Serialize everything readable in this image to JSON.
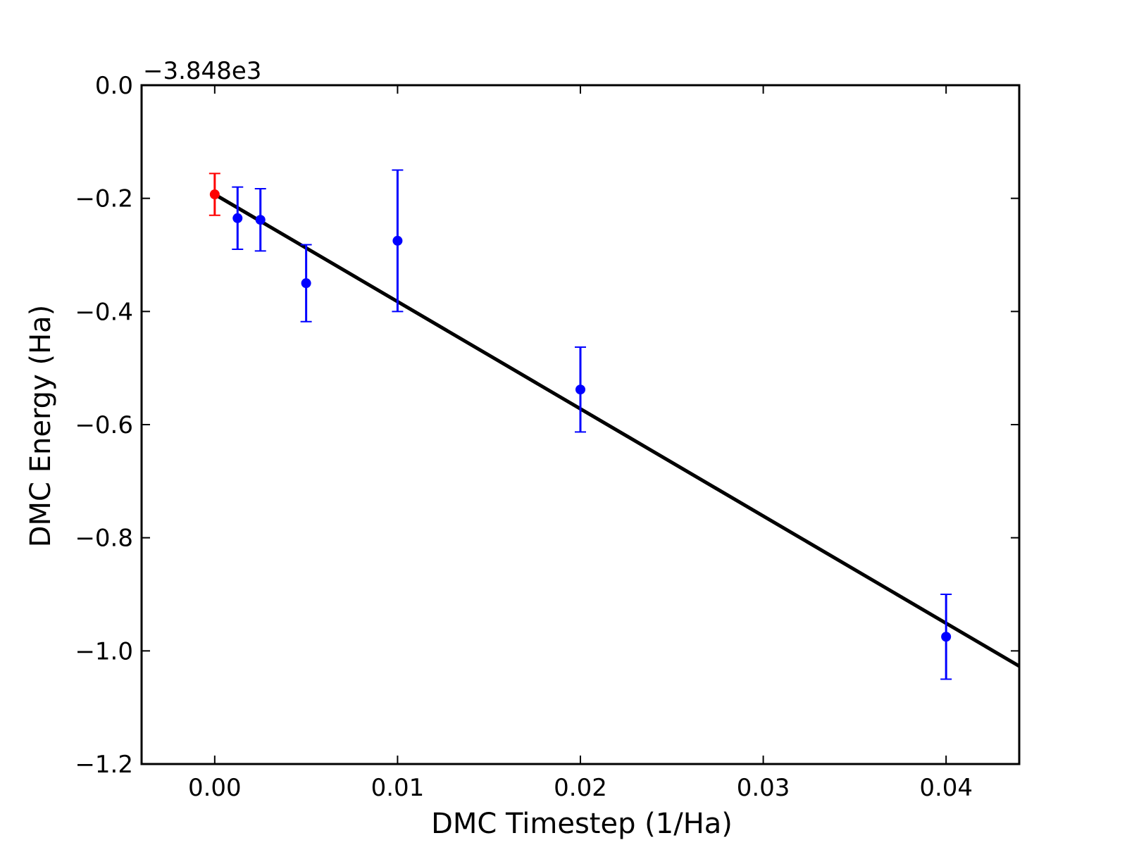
{
  "chart_data": {
    "type": "scatter",
    "xlabel": "DMC Timestep (1/Ha)",
    "ylabel": "DMC Energy (Ha)",
    "y_offset_label": "−3.848e3",
    "xlim": [
      -0.004,
      0.044
    ],
    "ylim": [
      -1.2,
      0.0
    ],
    "x_ticks": [
      0.0,
      0.01,
      0.02,
      0.03,
      0.04
    ],
    "x_tick_labels": [
      "0.00",
      "0.01",
      "0.02",
      "0.03",
      "0.04"
    ],
    "y_ticks": [
      0.0,
      -0.2,
      -0.4,
      -0.6,
      -0.8,
      -1.0,
      -1.2
    ],
    "y_tick_labels": [
      "0.0",
      "−0.2",
      "−0.4",
      "−0.6",
      "−0.8",
      "−1.0",
      "−1.2"
    ],
    "grid": false,
    "legend": "none",
    "series": [
      {
        "color": "#0000ff",
        "points": [
          {
            "x": 0.00125,
            "y": -0.235,
            "err": 0.055
          },
          {
            "x": 0.0025,
            "y": -0.238,
            "err": 0.055
          },
          {
            "x": 0.005,
            "y": -0.35,
            "err": 0.068
          },
          {
            "x": 0.01,
            "y": -0.275,
            "err": 0.125
          },
          {
            "x": 0.02,
            "y": -0.538,
            "err": 0.075
          },
          {
            "x": 0.04,
            "y": -0.975,
            "err": 0.075
          }
        ]
      },
      {
        "color": "#ff0000",
        "points": [
          {
            "x": 0.0,
            "y": -0.193,
            "err": 0.037
          }
        ]
      }
    ],
    "fit_line": {
      "color": "#000000",
      "x": [
        0.0,
        0.044
      ],
      "y": [
        -0.193,
        -1.027
      ]
    }
  }
}
